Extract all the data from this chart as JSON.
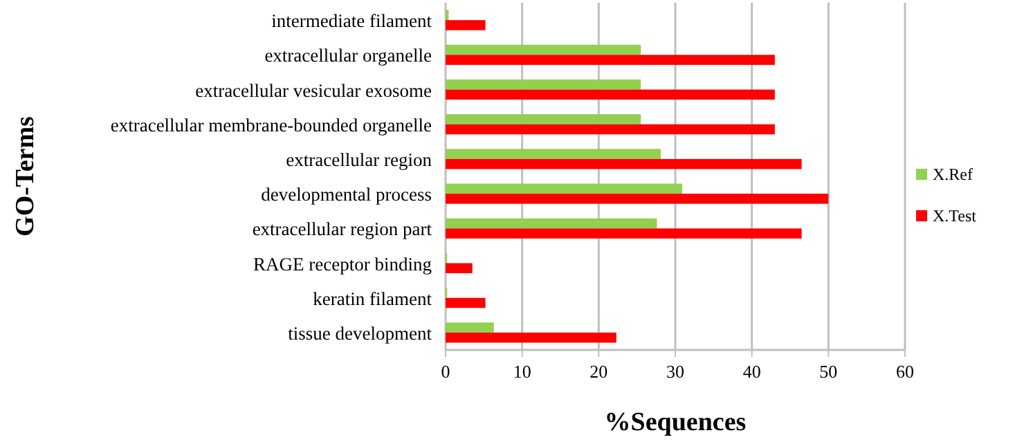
{
  "chart_data": {
    "type": "bar",
    "orientation": "horizontal",
    "xlabel": "%Sequences",
    "ylabel": "GO-Terms",
    "categories": [
      "intermediate filament",
      "extracellular organelle",
      "extracellular vesicular exosome",
      "extracellular membrane-bounded organelle",
      "extracellular region",
      "developmental process",
      "extracellular region part",
      "RAGE receptor binding",
      "keratin filament",
      "tissue development"
    ],
    "series": [
      {
        "name": "X.Ref",
        "color": "#92d050",
        "values": [
          0.4,
          25.5,
          25.5,
          25.5,
          28.1,
          30.9,
          27.6,
          0.2,
          0.2,
          6.3
        ]
      },
      {
        "name": "X.Test",
        "color": "#ff0000",
        "values": [
          5.2,
          43.0,
          43.0,
          43.0,
          46.5,
          50,
          46.5,
          3.5,
          5.2,
          22.3
        ]
      }
    ],
    "xlim": [
      0,
      60
    ],
    "xticks": [
      0,
      10,
      20,
      30,
      40,
      50,
      60
    ],
    "grid": "x",
    "legend": "right"
  }
}
